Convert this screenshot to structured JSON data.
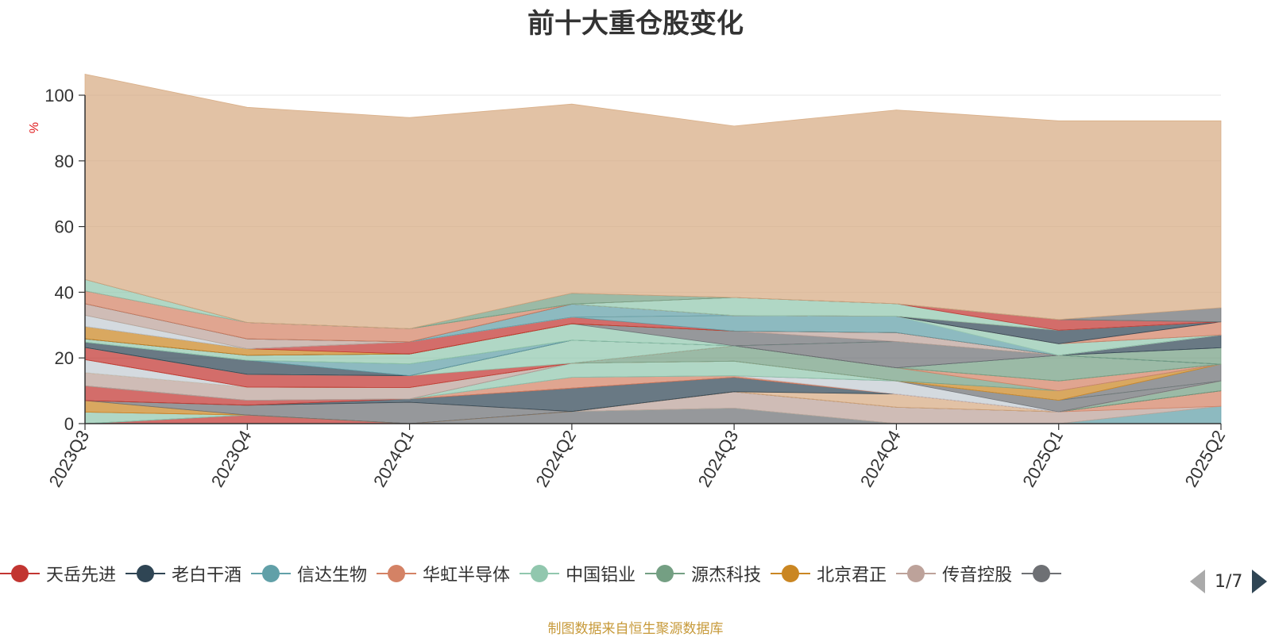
{
  "title": "前十大重仓股变化",
  "source_note": "制图数据来自恒生聚源数据库",
  "pager": {
    "text": "1/7",
    "prev_icon": "triangle-left-icon",
    "next_icon": "triangle-right-icon"
  },
  "legend": [
    {
      "name": "天岳先进",
      "color": "#c23531"
    },
    {
      "name": "老白干酒",
      "color": "#2f4554"
    },
    {
      "name": "信达生物",
      "color": "#61a0a8"
    },
    {
      "name": "华虹半导体",
      "color": "#d48265"
    },
    {
      "name": "中国铝业",
      "color": "#91c7ae"
    },
    {
      "name": "源杰科技",
      "color": "#749f83"
    },
    {
      "name": "北京君正",
      "color": "#ca8622"
    },
    {
      "name": "传音控股",
      "color": "#bda29a"
    },
    {
      "name": "",
      "color": "#6e7074"
    }
  ],
  "chart_data": {
    "type": "area",
    "stacked": true,
    "title": "前十大重仓股变化",
    "ylabel": "%",
    "ylim": [
      0,
      100
    ],
    "yticks": [
      0,
      20,
      40,
      60,
      80,
      100
    ],
    "grid": true,
    "legend_position": "bottom",
    "x": [
      "2023Q3",
      "2023Q4",
      "2024Q1",
      "2024Q2",
      "2024Q3",
      "2024Q4",
      "2025Q1",
      "2025Q2"
    ],
    "series": [
      {
        "color": "#c23531",
        "values": [
          0,
          2.6,
          0,
          0,
          0,
          0,
          0,
          0
        ]
      },
      {
        "color": "#6e7074",
        "values": [
          0,
          0,
          0,
          3.7,
          4.7,
          0,
          0,
          0
        ]
      },
      {
        "color": "#61a0a8",
        "values": [
          0,
          0,
          0,
          0,
          0,
          0,
          0,
          5.3
        ]
      },
      {
        "color": "#91c7ae",
        "values": [
          3.5,
          0,
          0,
          0,
          0,
          0,
          0,
          0
        ]
      },
      {
        "color": "#bda29a",
        "values": [
          0,
          0,
          0,
          0,
          5.0,
          5.0,
          3.6,
          0
        ]
      },
      {
        "color": "#d48265",
        "values": [
          0,
          0,
          0,
          0,
          0,
          0,
          0,
          4.7
        ]
      },
      {
        "color": "#ca8622",
        "values": [
          3.5,
          0,
          0,
          0,
          0,
          0,
          0,
          0
        ]
      },
      {
        "color": "#6e7074",
        "values": [
          0,
          3.0,
          6.5,
          0,
          0,
          0,
          0,
          0
        ]
      },
      {
        "color": "#d7ab82",
        "values": [
          0,
          0,
          0,
          0,
          0,
          4.0,
          0,
          0
        ]
      },
      {
        "color": "#2f4554",
        "values": [
          0,
          0,
          1.0,
          7.1,
          4.4,
          0,
          0,
          0
        ]
      },
      {
        "color": "#749f83",
        "values": [
          0,
          0,
          0,
          0,
          0,
          0,
          0,
          3.0
        ]
      },
      {
        "color": "#c23531",
        "values": [
          4.5,
          1.5,
          0,
          0,
          0,
          0,
          0,
          0
        ]
      },
      {
        "color": "#d48265",
        "values": [
          0,
          0,
          0,
          3.3,
          0.5,
          0,
          0,
          0
        ]
      },
      {
        "color": "#c4ccd3",
        "values": [
          0,
          0,
          0,
          0,
          0,
          4.0,
          0,
          0
        ]
      },
      {
        "color": "#6e7074",
        "values": [
          0,
          0,
          0,
          0,
          0,
          0,
          3.5,
          0
        ]
      },
      {
        "color": "#91c7ae",
        "values": [
          0,
          0,
          0,
          4.3,
          4.4,
          0,
          0,
          0
        ]
      },
      {
        "color": "#6e7074",
        "values": [
          0,
          0,
          0,
          0,
          0,
          0,
          0,
          5.1
        ]
      },
      {
        "color": "#bda29a",
        "values": [
          4.0,
          4.0,
          3.5,
          0,
          0,
          0,
          0,
          0
        ]
      },
      {
        "color": "#ca8622",
        "values": [
          0,
          0,
          0,
          0,
          0,
          0,
          2.9,
          0
        ]
      },
      {
        "color": "#c4ccd3",
        "values": [
          4.0,
          0,
          0,
          0,
          0,
          0,
          0,
          0
        ]
      },
      {
        "color": "#749f83",
        "values": [
          0,
          0,
          0,
          0,
          4.7,
          4.0,
          0,
          0
        ]
      },
      {
        "color": "#d48265",
        "values": [
          0,
          0,
          0,
          0,
          0,
          0,
          3.0,
          0
        ]
      },
      {
        "color": "#c23531",
        "values": [
          3.7,
          3.9,
          3.6,
          0,
          0,
          0,
          0,
          0
        ]
      },
      {
        "color": "#91c7ae",
        "values": [
          0,
          0,
          0,
          7.0,
          0,
          0,
          0,
          0
        ]
      },
      {
        "color": "#749f83",
        "values": [
          0,
          0,
          0,
          0,
          0,
          0,
          7.8,
          0
        ]
      },
      {
        "color": "#2f4554",
        "values": [
          1.6,
          4.3,
          0,
          0,
          0,
          0,
          0,
          0
        ]
      },
      {
        "color": "#6e7074",
        "values": [
          0,
          0,
          0,
          0,
          0,
          8.0,
          0,
          0
        ]
      },
      {
        "color": "#61a0a8",
        "values": [
          0,
          0,
          3.6,
          0,
          0,
          0,
          0,
          0
        ]
      },
      {
        "color": "#749f83",
        "values": [
          0,
          0,
          0,
          0,
          0,
          0,
          0,
          5.0
        ]
      },
      {
        "color": "#91c7ae",
        "values": [
          1.0,
          1.5,
          3.0,
          5.0,
          0,
          0,
          0,
          0
        ]
      },
      {
        "color": "#6e7074",
        "values": [
          0,
          0,
          0,
          0,
          4.5,
          0,
          0,
          0
        ]
      },
      {
        "color": "#bda29a",
        "values": [
          0,
          0,
          0,
          0,
          0,
          2.7,
          0,
          0
        ]
      },
      {
        "color": "#2f4554",
        "values": [
          0,
          0,
          0,
          0,
          0,
          0,
          0,
          3.9
        ]
      },
      {
        "color": "#ca8622",
        "values": [
          3.8,
          2.0,
          0,
          0,
          0,
          0,
          0,
          0
        ]
      },
      {
        "color": "#c23531",
        "values": [
          0,
          0,
          3.7,
          2.0,
          0,
          0,
          0,
          0
        ]
      },
      {
        "color": "#61a0a8",
        "values": [
          0,
          0,
          0,
          0,
          4.7,
          5.0,
          0,
          0
        ]
      },
      {
        "color": "#c4ccd3",
        "values": [
          3.4,
          0,
          0,
          0,
          0,
          0,
          0,
          0
        ]
      },
      {
        "color": "#91c7ae",
        "values": [
          0,
          0,
          0,
          0,
          0,
          0,
          3.5,
          0
        ]
      },
      {
        "color": "#bda29a",
        "values": [
          3.5,
          3.0,
          0,
          0,
          0,
          0,
          0,
          0
        ]
      },
      {
        "color": "#61a0a8",
        "values": [
          0,
          0,
          0,
          4.0,
          0,
          0,
          0,
          0
        ]
      },
      {
        "color": "#d48265",
        "values": [
          0,
          0,
          0,
          0,
          0,
          0,
          0,
          4.0
        ]
      },
      {
        "color": "#2f4554",
        "values": [
          0,
          0,
          0,
          0,
          0,
          0,
          4.1,
          0
        ]
      },
      {
        "color": "#d48265",
        "values": [
          3.9,
          5.0,
          4.0,
          0,
          0,
          0,
          0,
          0
        ]
      },
      {
        "color": "#91c7ae",
        "values": [
          0,
          0,
          0,
          0,
          5.5,
          3.8,
          0,
          0
        ]
      },
      {
        "color": "#c23531",
        "values": [
          0,
          0,
          0,
          0,
          0,
          0,
          3.3,
          0
        ]
      },
      {
        "color": "#91c7ae",
        "values": [
          3.5,
          0,
          0,
          0,
          0,
          0,
          0,
          0
        ]
      },
      {
        "color": "#749f83",
        "values": [
          0,
          0,
          0,
          3.3,
          0,
          0,
          0,
          0
        ]
      },
      {
        "color": "#6e7074",
        "values": [
          0,
          0,
          0,
          0,
          0,
          0,
          0,
          4.3
        ]
      },
      {
        "color": "#d7ab82",
        "values": [
          62.5,
          65.5,
          64.3,
          57.6,
          52.2,
          59.0,
          60.5,
          56.9
        ]
      }
    ]
  }
}
